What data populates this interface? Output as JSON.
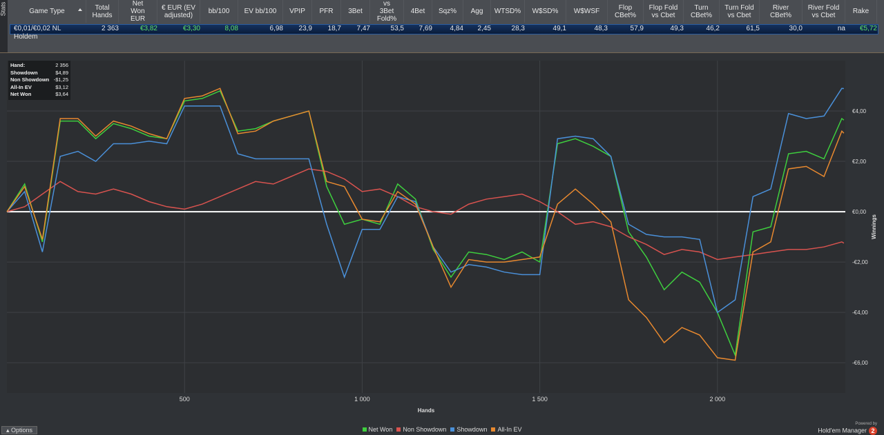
{
  "side_tab": "Stats",
  "table": {
    "headers": [
      "Game Type",
      "Total\nHands",
      "Net\nWon\nEUR",
      "€ EUR (EV\nadjusted)",
      "bb/100",
      "EV bb/100",
      "VPIP",
      "PFR",
      "3Bet",
      "vs\n3Bet\nFold%",
      "4Bet",
      "Sqz%",
      "Agg",
      "WTSD%",
      "W$SD%",
      "W$WSF",
      "Flop\nCBet%",
      "Flop Fold\nvs Cbet",
      "Turn\nCBet%",
      "Turn Fold\nvs Cbet",
      "River\nCBet%",
      "River Fold\nvs Cbet",
      "Rake"
    ],
    "rows": [
      [
        "€0,01/€0,02 NL Holdem",
        "2 363",
        "€3,82",
        "€3,30",
        "8,08",
        "6,98",
        "23,9",
        "18,7",
        "7,47",
        "53,5",
        "7,69",
        "4,84",
        "2,45",
        "28,3",
        "49,1",
        "48,3",
        "57,9",
        "49,3",
        "46,2",
        "61,5",
        "30,0",
        "na",
        "€5,72"
      ]
    ]
  },
  "summary": [
    [
      "Hand:",
      "2 356"
    ],
    [
      "Showdown",
      "$4,89"
    ],
    [
      "Non Showdown",
      "-$1,25"
    ],
    [
      "All-In EV",
      "$3,12"
    ],
    [
      "Net Won",
      "$3,64"
    ]
  ],
  "chart_data": {
    "type": "line",
    "x_label": "Hands",
    "y_label": "Winnings",
    "x": [
      0,
      50,
      100,
      150,
      200,
      250,
      300,
      350,
      400,
      450,
      500,
      550,
      600,
      650,
      700,
      750,
      800,
      850,
      900,
      950,
      1000,
      1050,
      1100,
      1150,
      1200,
      1250,
      1300,
      1350,
      1400,
      1450,
      1500,
      1550,
      1600,
      1650,
      1700,
      1750,
      1800,
      1850,
      1900,
      1950,
      2000,
      2050,
      2100,
      2150,
      2200,
      2250,
      2300,
      2350,
      2356
    ],
    "xlim": [
      0,
      2360
    ],
    "ylim": [
      -7.2,
      6.0
    ],
    "xticks": [
      500,
      {
        "value": 1000,
        "label": "1 000"
      },
      {
        "value": 1500,
        "label": "1 500"
      },
      {
        "value": 2000,
        "label": "2 000"
      }
    ],
    "yticks": [
      {
        "value": -6,
        "label": "-€6,00"
      },
      {
        "value": -4,
        "label": "-€4,00"
      },
      {
        "value": -2,
        "label": "-€2,00"
      },
      {
        "value": 0,
        "label": "€0,00"
      },
      {
        "value": 2,
        "label": "€2,00"
      },
      {
        "value": 4,
        "label": "€4,00"
      }
    ],
    "grid": true,
    "series": [
      {
        "name": "Net Won",
        "color": "#3ecf3e",
        "values": [
          0,
          1.1,
          -1.2,
          3.6,
          3.6,
          2.9,
          3.5,
          3.3,
          3.0,
          2.9,
          4.4,
          4.5,
          4.8,
          3.2,
          3.3,
          3.6,
          3.8,
          4.0,
          1.0,
          -0.5,
          -0.3,
          -0.5,
          1.1,
          0.5,
          -1.5,
          -2.6,
          -1.6,
          -1.7,
          -1.9,
          -1.6,
          -2.0,
          2.7,
          2.9,
          2.6,
          2.2,
          -0.8,
          -1.8,
          -3.1,
          -2.4,
          -2.8,
          -4.0,
          -5.7,
          -0.8,
          -0.6,
          2.3,
          2.4,
          2.1,
          3.7,
          3.64
        ]
      },
      {
        "name": "Non Showdown",
        "color": "#d9534f",
        "values": [
          0,
          0.2,
          0.7,
          1.2,
          0.8,
          0.7,
          0.9,
          0.7,
          0.4,
          0.2,
          0.1,
          0.3,
          0.6,
          0.9,
          1.2,
          1.1,
          1.4,
          1.7,
          1.6,
          1.3,
          0.8,
          0.9,
          0.6,
          0.2,
          0.0,
          -0.1,
          0.3,
          0.5,
          0.6,
          0.7,
          0.4,
          0.0,
          -0.5,
          -0.4,
          -0.6,
          -1.0,
          -1.3,
          -1.7,
          -1.5,
          -1.6,
          -1.9,
          -1.8,
          -1.7,
          -1.6,
          -1.5,
          -1.5,
          -1.4,
          -1.2,
          -1.25
        ]
      },
      {
        "name": "Showdown",
        "color": "#4a90d9",
        "values": [
          0,
          0.8,
          -1.6,
          2.2,
          2.4,
          2.0,
          2.7,
          2.7,
          2.8,
          2.7,
          4.2,
          4.2,
          4.2,
          2.3,
          2.1,
          2.1,
          2.1,
          2.1,
          -0.5,
          -2.6,
          -0.7,
          -0.7,
          0.6,
          0.4,
          -1.4,
          -2.4,
          -2.1,
          -2.2,
          -2.4,
          -2.5,
          -2.5,
          2.9,
          3.0,
          2.9,
          2.2,
          -0.5,
          -0.9,
          -1.0,
          -1.0,
          -1.1,
          -4.0,
          -3.5,
          0.6,
          0.9,
          3.9,
          3.7,
          3.8,
          4.9,
          4.89
        ]
      },
      {
        "name": "All-In EV",
        "color": "#e8892f",
        "values": [
          0,
          1.0,
          -1.1,
          3.7,
          3.7,
          3.0,
          3.6,
          3.4,
          3.1,
          2.9,
          4.5,
          4.6,
          4.9,
          3.1,
          3.2,
          3.6,
          3.8,
          4.0,
          1.2,
          1.0,
          -0.3,
          -0.4,
          0.8,
          0.3,
          -1.4,
          -3.0,
          -1.9,
          -2.0,
          -2.0,
          -1.9,
          -1.8,
          0.3,
          0.9,
          0.3,
          -0.4,
          -3.5,
          -4.2,
          -5.2,
          -4.6,
          -4.9,
          -5.8,
          -5.9,
          -1.6,
          -1.2,
          1.7,
          1.8,
          1.4,
          3.2,
          3.12
        ]
      }
    ]
  },
  "footer": {
    "options": "Options",
    "powered_by": "Powered by",
    "brand": "Hold'em Manager",
    "brand_version": "2"
  }
}
